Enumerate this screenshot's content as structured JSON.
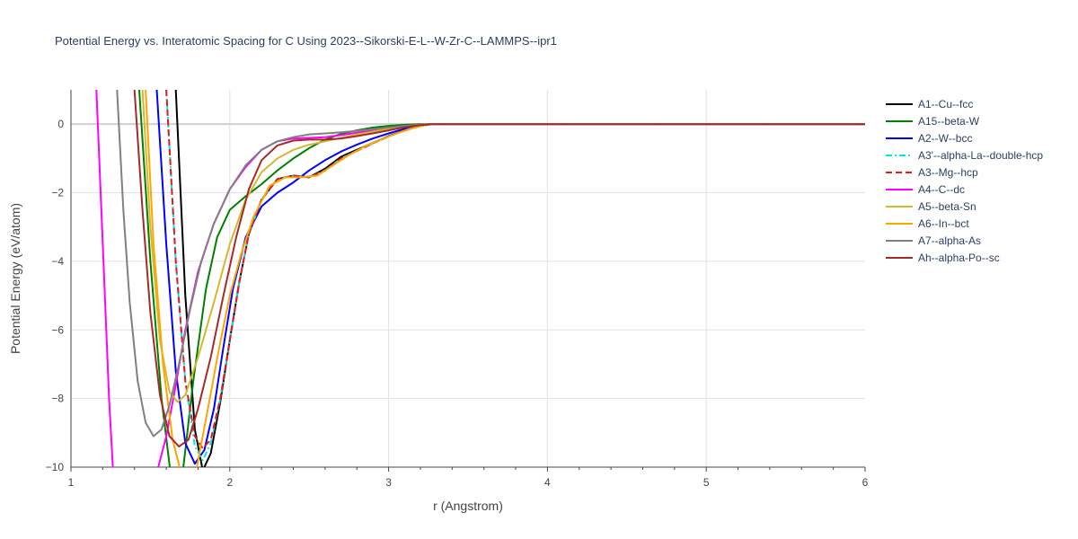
{
  "chart_data": {
    "type": "line",
    "title": "Potential Energy vs. Interatomic Spacing for C Using 2023--Sikorski-E-L--W-Zr-C--LAMMPS--ipr1",
    "xlabel": "r (Angstrom)",
    "ylabel": "Potential Energy (eV/atom)",
    "xlim": [
      1,
      6
    ],
    "ylim": [
      -10,
      1
    ],
    "x_ticks": [
      1,
      2,
      3,
      4,
      5,
      6
    ],
    "y_ticks": [
      0,
      -2,
      -4,
      -6,
      -8,
      -10
    ],
    "x_tick_labels": [
      "1",
      "2",
      "3",
      "4",
      "5",
      "6"
    ],
    "y_tick_labels": [
      "0",
      "−2",
      "−4",
      "−6",
      "−8",
      "−10"
    ],
    "grid": true,
    "legend_position": "right",
    "series": [
      {
        "name": "A1--Cu--fcc",
        "color": "#000000",
        "dash": "solid",
        "points": [
          [
            1.66,
            1
          ],
          [
            1.72,
            -5
          ],
          [
            1.78,
            -8.9
          ],
          [
            1.83,
            -10.1
          ],
          [
            1.88,
            -9.6
          ],
          [
            1.94,
            -8.1
          ],
          [
            2.0,
            -6.3
          ],
          [
            2.06,
            -4.6
          ],
          [
            2.12,
            -3.2
          ],
          [
            2.2,
            -2.2
          ],
          [
            2.3,
            -1.6
          ],
          [
            2.4,
            -1.5
          ],
          [
            2.5,
            -1.55
          ],
          [
            2.6,
            -1.3
          ],
          [
            2.7,
            -0.95
          ],
          [
            2.8,
            -0.75
          ],
          [
            2.9,
            -0.55
          ],
          [
            3.0,
            -0.35
          ],
          [
            3.1,
            -0.18
          ],
          [
            3.2,
            -0.05
          ],
          [
            3.27,
            0
          ],
          [
            6,
            0
          ]
        ]
      },
      {
        "name": "A15--beta-W",
        "color": "#008000",
        "dash": "solid",
        "points": [
          [
            1.43,
            1
          ],
          [
            1.5,
            -4
          ],
          [
            1.57,
            -8
          ],
          [
            1.63,
            -10.3
          ],
          [
            1.7,
            -10.3
          ],
          [
            1.77,
            -7.5
          ],
          [
            1.85,
            -4.8
          ],
          [
            1.92,
            -3.3
          ],
          [
            2.0,
            -2.5
          ],
          [
            2.1,
            -2.1
          ],
          [
            2.2,
            -1.75
          ],
          [
            2.3,
            -1.35
          ],
          [
            2.4,
            -1.0
          ],
          [
            2.5,
            -0.7
          ],
          [
            2.6,
            -0.45
          ],
          [
            2.7,
            -0.28
          ],
          [
            2.8,
            -0.18
          ],
          [
            2.9,
            -0.1
          ],
          [
            3.0,
            -0.05
          ],
          [
            3.1,
            -0.02
          ],
          [
            3.2,
            0
          ],
          [
            6,
            0
          ]
        ]
      },
      {
        "name": "A2--W--bcc",
        "color": "#0000ff",
        "dash": "solid",
        "points": [
          [
            1.54,
            1
          ],
          [
            1.6,
            -3.5
          ],
          [
            1.66,
            -7.2
          ],
          [
            1.72,
            -9.3
          ],
          [
            1.78,
            -9.9
          ],
          [
            1.84,
            -9.5
          ],
          [
            1.9,
            -8.3
          ],
          [
            1.96,
            -6.5
          ],
          [
            2.02,
            -4.8
          ],
          [
            2.1,
            -3.3
          ],
          [
            2.2,
            -2.4
          ],
          [
            2.3,
            -2.0
          ],
          [
            2.4,
            -1.7
          ],
          [
            2.5,
            -1.35
          ],
          [
            2.6,
            -1.05
          ],
          [
            2.7,
            -0.8
          ],
          [
            2.8,
            -0.6
          ],
          [
            2.9,
            -0.42
          ],
          [
            3.0,
            -0.27
          ],
          [
            3.1,
            -0.14
          ],
          [
            3.2,
            -0.05
          ],
          [
            3.27,
            0
          ],
          [
            6,
            0
          ]
        ]
      },
      {
        "name": "A3'--alpha-La--double-hcp",
        "color": "#00e5ee",
        "dash": "dashdot",
        "points": [
          [
            1.6,
            1
          ],
          [
            1.66,
            -4
          ],
          [
            1.72,
            -7.5
          ],
          [
            1.78,
            -9.4
          ],
          [
            1.83,
            -9.8
          ],
          [
            1.88,
            -9.3
          ],
          [
            1.94,
            -8.0
          ],
          [
            2.0,
            -6.3
          ],
          [
            2.06,
            -4.6
          ],
          [
            2.12,
            -3.2
          ],
          [
            2.2,
            -2.2
          ],
          [
            2.3,
            -1.6
          ],
          [
            2.4,
            -1.5
          ],
          [
            2.5,
            -1.55
          ],
          [
            2.6,
            -1.35
          ],
          [
            2.7,
            -1.0
          ],
          [
            2.8,
            -0.78
          ],
          [
            2.9,
            -0.56
          ],
          [
            3.0,
            -0.36
          ],
          [
            3.1,
            -0.18
          ],
          [
            3.2,
            -0.05
          ],
          [
            3.27,
            0
          ],
          [
            6,
            0
          ]
        ]
      },
      {
        "name": "A3--Mg--hcp",
        "color": "#e41a1c",
        "dash": "dash",
        "points": [
          [
            1.6,
            1
          ],
          [
            1.66,
            -4
          ],
          [
            1.72,
            -7.5
          ],
          [
            1.78,
            -9.1
          ],
          [
            1.83,
            -9.45
          ],
          [
            1.88,
            -9.2
          ],
          [
            1.94,
            -8.0
          ],
          [
            2.0,
            -6.3
          ],
          [
            2.06,
            -4.6
          ],
          [
            2.12,
            -3.2
          ],
          [
            2.2,
            -2.2
          ],
          [
            2.3,
            -1.6
          ],
          [
            2.4,
            -1.5
          ],
          [
            2.5,
            -1.55
          ],
          [
            2.6,
            -1.35
          ],
          [
            2.7,
            -1.0
          ],
          [
            2.8,
            -0.78
          ],
          [
            2.9,
            -0.56
          ],
          [
            3.0,
            -0.36
          ],
          [
            3.1,
            -0.18
          ],
          [
            3.2,
            -0.05
          ],
          [
            3.27,
            0
          ],
          [
            6,
            0
          ]
        ]
      },
      {
        "name": "A4--C--dc",
        "color": "#ff00ff",
        "dash": "solid",
        "points": [
          [
            1.16,
            1
          ],
          [
            1.2,
            -3.5
          ],
          [
            1.24,
            -8
          ],
          [
            1.27,
            -10.5
          ],
          [
            1.5,
            -10.5
          ],
          [
            1.55,
            -10
          ],
          [
            1.6,
            -9.1
          ],
          [
            1.66,
            -7.6
          ],
          [
            1.72,
            -6.0
          ],
          [
            1.8,
            -4.3
          ],
          [
            1.9,
            -2.9
          ],
          [
            2.0,
            -1.9
          ],
          [
            2.1,
            -1.25
          ],
          [
            2.2,
            -0.75
          ],
          [
            2.3,
            -0.5
          ],
          [
            2.4,
            -0.42
          ],
          [
            2.5,
            -0.4
          ],
          [
            2.6,
            -0.38
          ],
          [
            2.7,
            -0.32
          ],
          [
            2.8,
            -0.25
          ],
          [
            2.9,
            -0.18
          ],
          [
            3.0,
            -0.12
          ],
          [
            3.1,
            -0.06
          ],
          [
            3.2,
            -0.02
          ],
          [
            3.27,
            0
          ],
          [
            6,
            0
          ]
        ]
      },
      {
        "name": "A5--beta-Sn",
        "color": "#d4b82e",
        "dash": "solid",
        "points": [
          [
            1.45,
            1
          ],
          [
            1.5,
            -3
          ],
          [
            1.56,
            -6.3
          ],
          [
            1.62,
            -7.8
          ],
          [
            1.67,
            -8.1
          ],
          [
            1.72,
            -7.9
          ],
          [
            1.8,
            -6.8
          ],
          [
            1.9,
            -5.2
          ],
          [
            2.0,
            -3.5
          ],
          [
            2.1,
            -2.2
          ],
          [
            2.2,
            -1.4
          ],
          [
            2.3,
            -1.0
          ],
          [
            2.4,
            -0.75
          ],
          [
            2.5,
            -0.6
          ],
          [
            2.6,
            -0.5
          ],
          [
            2.7,
            -0.4
          ],
          [
            2.8,
            -0.3
          ],
          [
            2.9,
            -0.22
          ],
          [
            3.0,
            -0.14
          ],
          [
            3.1,
            -0.07
          ],
          [
            3.2,
            -0.02
          ],
          [
            3.27,
            0
          ],
          [
            6,
            0
          ]
        ]
      },
      {
        "name": "A6--In--bct",
        "color": "#ffa500",
        "dash": "solid",
        "points": [
          [
            1.47,
            1
          ],
          [
            1.52,
            -3.5
          ],
          [
            1.58,
            -7
          ],
          [
            1.64,
            -9.2
          ],
          [
            1.7,
            -10.3
          ],
          [
            1.78,
            -10.3
          ],
          [
            1.85,
            -8.6
          ],
          [
            1.93,
            -6.6
          ],
          [
            2.0,
            -5.0
          ],
          [
            2.07,
            -3.8
          ],
          [
            2.15,
            -2.7
          ],
          [
            2.25,
            -1.8
          ],
          [
            2.35,
            -1.55
          ],
          [
            2.45,
            -1.55
          ],
          [
            2.55,
            -1.5
          ],
          [
            2.65,
            -1.2
          ],
          [
            2.75,
            -0.9
          ],
          [
            2.85,
            -0.65
          ],
          [
            2.95,
            -0.45
          ],
          [
            3.05,
            -0.27
          ],
          [
            3.15,
            -0.12
          ],
          [
            3.22,
            -0.04
          ],
          [
            3.27,
            0
          ],
          [
            6,
            0
          ]
        ]
      },
      {
        "name": "A7--alpha-As",
        "color": "#808080",
        "dash": "solid",
        "points": [
          [
            1.29,
            1
          ],
          [
            1.33,
            -2.5
          ],
          [
            1.37,
            -5.2
          ],
          [
            1.42,
            -7.5
          ],
          [
            1.47,
            -8.7
          ],
          [
            1.52,
            -9.1
          ],
          [
            1.57,
            -8.9
          ],
          [
            1.62,
            -8.2
          ],
          [
            1.68,
            -7.0
          ],
          [
            1.75,
            -5.4
          ],
          [
            1.82,
            -4.0
          ],
          [
            1.9,
            -2.9
          ],
          [
            2.0,
            -1.9
          ],
          [
            2.1,
            -1.2
          ],
          [
            2.2,
            -0.75
          ],
          [
            2.3,
            -0.5
          ],
          [
            2.4,
            -0.38
          ],
          [
            2.5,
            -0.3
          ],
          [
            2.6,
            -0.27
          ],
          [
            2.7,
            -0.24
          ],
          [
            2.8,
            -0.2
          ],
          [
            2.9,
            -0.15
          ],
          [
            3.0,
            -0.1
          ],
          [
            3.1,
            -0.05
          ],
          [
            3.2,
            -0.02
          ],
          [
            3.27,
            0
          ],
          [
            6,
            0
          ]
        ]
      },
      {
        "name": "Ah--alpha-Po--sc",
        "color": "#a52a2a",
        "dash": "solid",
        "points": [
          [
            1.4,
            1
          ],
          [
            1.45,
            -2.5
          ],
          [
            1.5,
            -5.5
          ],
          [
            1.56,
            -7.9
          ],
          [
            1.62,
            -9.1
          ],
          [
            1.68,
            -9.4
          ],
          [
            1.74,
            -9.2
          ],
          [
            1.8,
            -8.3
          ],
          [
            1.88,
            -6.8
          ],
          [
            1.96,
            -5.0
          ],
          [
            2.04,
            -3.3
          ],
          [
            2.12,
            -1.9
          ],
          [
            2.2,
            -1.05
          ],
          [
            2.3,
            -0.62
          ],
          [
            2.4,
            -0.48
          ],
          [
            2.5,
            -0.45
          ],
          [
            2.6,
            -0.45
          ],
          [
            2.7,
            -0.42
          ],
          [
            2.8,
            -0.35
          ],
          [
            2.9,
            -0.27
          ],
          [
            3.0,
            -0.18
          ],
          [
            3.1,
            -0.09
          ],
          [
            3.2,
            -0.03
          ],
          [
            3.27,
            0
          ],
          [
            6,
            0
          ]
        ]
      }
    ]
  }
}
